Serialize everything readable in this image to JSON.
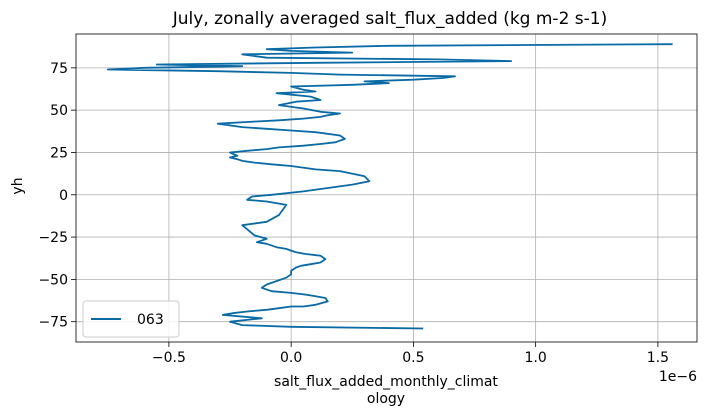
{
  "chart_data": {
    "type": "line",
    "title": "July, zonally averaged salt_flux_added (kg m-2 s-1)",
    "xlabel": [
      "salt_flux_added_monthly_climat",
      "ology"
    ],
    "ylabel": "yh",
    "x_offset_text": "1e−6",
    "x_scale": 1e-06,
    "xlim": [
      -8.8e-07,
      1.66e-06
    ],
    "ylim": [
      -87,
      95
    ],
    "x_ticks": [
      -5e-07,
      0,
      5e-07,
      1e-06,
      1.5e-06
    ],
    "x_tick_labels": [
      "−0.5",
      "0.0",
      "0.5",
      "1.0",
      "1.5"
    ],
    "y_ticks": [
      -75,
      -50,
      -25,
      0,
      25,
      50,
      75
    ],
    "y_tick_labels": [
      "−75",
      "−50",
      "−25",
      "0",
      "25",
      "50",
      "75"
    ],
    "grid": true,
    "legend_position": "lower-left",
    "colors": {
      "series": "#0a6aa6",
      "grid": "#b0b0b0"
    },
    "series": [
      {
        "name": "063",
        "x": [
          5.4e-07,
          0.0,
          -2e-07,
          -2.5e-07,
          -1.2e-07,
          -2.8e-07,
          -2.4e-07,
          -1.8e-07,
          -1e-07,
          -5e-08,
          0.0,
          5e-08,
          1e-07,
          1.5e-07,
          1.4e-07,
          1e-07,
          6e-08,
          0.0,
          -8e-08,
          -1.2e-07,
          -1e-07,
          -6e-08,
          -2e-08,
          0.0,
          0.0,
          2e-08,
          4e-08,
          8e-08,
          1.2e-07,
          1.4e-07,
          1.2e-07,
          6e-08,
          2e-08,
          0.0,
          -2e-08,
          -6e-08,
          -1e-07,
          -1.4e-07,
          -1e-07,
          -1.5e-07,
          -2e-07,
          -1e-07,
          -5e-08,
          -2e-08,
          -1e-07,
          -1.8e-07,
          -1.6e-07,
          -8e-08,
          5e-08,
          1.5e-07,
          2.5e-07,
          3.2e-07,
          3e-07,
          2e-07,
          1e-07,
          0.0,
          -8e-08,
          -1.5e-07,
          -2e-07,
          -2.2e-07,
          -2.5e-07,
          -2.2e-07,
          -2.5e-07,
          -1.8e-07,
          -1e-07,
          -5e-08,
          5e-08,
          1.2e-07,
          1.8e-07,
          2.2e-07,
          2e-07,
          1e-07,
          0.0,
          -1e-07,
          -2e-07,
          -3e-07,
          -1.8e-07,
          -5e-08,
          5e-08,
          1.2e-07,
          1.5e-07,
          2e-07,
          1.2e-07,
          5e-08,
          -5e-08,
          2e-08,
          1.2e-07,
          8e-08,
          -6e-08,
          1e-07,
          5e-08,
          0.0,
          2.5e-07,
          4e-07,
          3e-07,
          5e-07,
          6.2e-07,
          6.7e-07,
          2e-07,
          0.0,
          -3e-07,
          -7.5e-07,
          -6e-07,
          -2e-07,
          -5.5e-07,
          1e-07,
          9e-07,
          6e-07,
          -1e-07,
          -2e-07,
          2.5e-07,
          0.0,
          -1e-07,
          1e-07,
          4e-07,
          1.56e-06
        ],
        "y": [
          -79,
          -78,
          -77,
          -75,
          -73,
          -71,
          -70,
          -69,
          -68,
          -67,
          -66,
          -66,
          -65,
          -63,
          -61,
          -60,
          -59,
          -58,
          -57,
          -55,
          -53,
          -51,
          -49,
          -47,
          -45,
          -43,
          -42,
          -41,
          -40,
          -38,
          -36,
          -35,
          -34,
          -33,
          -32,
          -31,
          -29,
          -28,
          -26,
          -24,
          -18,
          -16,
          -12,
          -6,
          -4,
          -3,
          -1,
          0,
          2,
          4,
          6,
          8,
          11,
          14,
          15,
          17,
          18,
          19,
          20,
          21,
          22,
          23,
          25,
          26,
          27,
          28,
          29,
          30,
          31,
          33,
          35,
          37,
          38,
          39,
          40,
          42,
          43,
          44,
          45,
          46,
          47,
          48,
          49,
          51,
          53,
          55,
          56,
          58,
          60,
          61,
          62,
          64,
          65,
          66,
          67,
          68,
          69,
          70,
          71,
          72,
          73,
          74,
          75,
          76,
          77,
          78,
          79,
          80,
          81,
          83,
          84,
          85,
          86,
          87,
          88,
          89
        ]
      }
    ]
  }
}
